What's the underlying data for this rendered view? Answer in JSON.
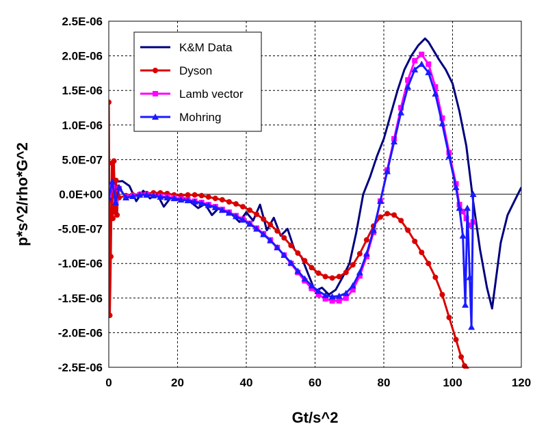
{
  "chart_data": {
    "type": "line",
    "xlabel": "Gt/s^2",
    "ylabel": "p*s^2/rho*G^2",
    "xlim": [
      0,
      120
    ],
    "ylim": [
      -2.5e-06,
      2.5e-06
    ],
    "x_ticks": [
      0,
      20,
      40,
      60,
      80,
      100,
      120
    ],
    "x_tick_labels": [
      "0",
      "20",
      "40",
      "60",
      "80",
      "100",
      "120"
    ],
    "y_ticks": [
      2.5e-06,
      2e-06,
      1.5e-06,
      1e-06,
      5e-07,
      0,
      -5e-07,
      -1e-06,
      -1.5e-06,
      -2e-06,
      -2.5e-06
    ],
    "y_tick_labels": [
      "2.5E-06",
      "2.0E-06",
      "1.5E-06",
      "1.0E-06",
      "5.0E-07",
      "0.0E+00",
      "-5.0E-07",
      "-1.0E-06",
      "-1.5E-06",
      "-2.0E-06",
      "-2.5E-06"
    ],
    "grid": true,
    "legend_position": "top-left",
    "series": [
      {
        "name": "K&M Data",
        "color": "#00007f",
        "marker": "none",
        "x": [
          0,
          2,
          4,
          6,
          8,
          10,
          12,
          14,
          16,
          18,
          20,
          22,
          24,
          26,
          28,
          30,
          32,
          34,
          36,
          38,
          40,
          42,
          44,
          46,
          48,
          50,
          52,
          54,
          56,
          58,
          60,
          62,
          64,
          66,
          68,
          70,
          72,
          74,
          76,
          78,
          80,
          82,
          84,
          86,
          88,
          90,
          92,
          93,
          96,
          98,
          100,
          102,
          104,
          106,
          108,
          110,
          111.5,
          114,
          116,
          118,
          120
        ],
        "y": [
          -1.5e-07,
          1.8e-07,
          1.9e-07,
          1.2e-07,
          -1e-07,
          5e-08,
          -6e-08,
          1e-08,
          -1.8e-07,
          -5e-08,
          -8e-08,
          -6e-08,
          -1.2e-07,
          -2e-07,
          -1.4e-07,
          -3e-07,
          -2e-07,
          -2.4e-07,
          -3e-07,
          -4e-07,
          -2.6e-07,
          -3.8e-07,
          -1.5e-07,
          -5.2e-07,
          -3.4e-07,
          -6e-07,
          -5e-07,
          -8e-07,
          -9e-07,
          -1.15e-06,
          -1.4e-06,
          -1.35e-06,
          -1.45e-06,
          -1.38e-06,
          -1.2e-06,
          -1e-06,
          -5.5e-07,
          0,
          2.5e-07,
          5.5e-07,
          8e-07,
          1.15e-06,
          1.5e-06,
          1.8e-06,
          2e-06,
          2.15e-06,
          2.25e-06,
          2.2e-06,
          1.95e-06,
          1.8e-06,
          1.6e-06,
          1.2e-06,
          7e-07,
          -1e-07,
          -8e-07,
          -1.35e-06,
          -1.65e-06,
          -7e-07,
          -3e-07,
          -1e-07,
          1e-07
        ]
      },
      {
        "name": "Dyson",
        "color": "#d90000",
        "marker": "circle",
        "x": [
          0,
          0.3,
          0.6,
          0.9,
          1.2,
          1.5,
          1.8,
          2.1,
          2.4,
          2.7,
          3,
          5,
          7,
          9,
          11,
          13,
          15,
          17,
          19,
          21,
          23,
          25,
          27,
          29,
          31,
          33,
          35,
          37,
          39,
          41,
          43,
          45,
          47,
          49,
          51,
          53,
          55,
          57,
          59,
          61,
          63,
          65,
          67,
          69,
          71,
          73,
          75,
          77,
          79,
          81,
          83,
          85,
          87,
          89,
          91,
          93,
          95,
          97,
          99,
          101,
          102.5,
          103.5,
          104
        ],
        "y": [
          1.33e-06,
          -1.75e-06,
          -9e-07,
          4.5e-07,
          -3.5e-07,
          4.8e-07,
          -2.5e-07,
          2e-07,
          -3e-07,
          1e-07,
          -5e-08,
          -2e-08,
          -1e-08,
          0,
          1e-08,
          2e-08,
          2e-08,
          1e-08,
          -1e-08,
          -2e-08,
          -1e-08,
          -1e-08,
          -2e-08,
          -4e-08,
          -6e-08,
          -8e-08,
          -1.1e-07,
          -1.4e-07,
          -1.8e-07,
          -2.3e-07,
          -2.9e-07,
          -3.6e-07,
          -4.4e-07,
          -5.3e-07,
          -6.3e-07,
          -7.4e-07,
          -8.5e-07,
          -9.6e-07,
          -1.06e-06,
          -1.14e-06,
          -1.19e-06,
          -1.21e-06,
          -1.19e-06,
          -1.13e-06,
          -1.02e-06,
          -8.6e-07,
          -6.6e-07,
          -4.6e-07,
          -3.3e-07,
          -2.8e-07,
          -3e-07,
          -3.8e-07,
          -5.2e-07,
          -6.8e-07,
          -8.4e-07,
          -1e-06,
          -1.2e-06,
          -1.45e-06,
          -1.78e-06,
          -2.1e-06,
          -2.35e-06,
          -2.48e-06,
          -2.52e-06
        ]
      },
      {
        "name": "Lamb vector",
        "color": "#ff00ff",
        "marker": "square",
        "x": [
          0,
          1,
          2,
          3,
          5,
          7,
          9,
          11,
          13,
          15,
          17,
          19,
          21,
          23,
          25,
          27,
          29,
          31,
          33,
          35,
          37,
          39,
          41,
          43,
          45,
          47,
          49,
          51,
          53,
          55,
          57,
          59,
          61,
          63,
          65,
          67,
          69,
          71,
          73,
          75,
          77,
          79,
          81,
          83,
          85,
          87,
          89,
          91,
          93,
          95,
          97,
          99,
          101,
          102,
          103,
          104,
          105,
          106
        ],
        "y": [
          -1e-08,
          1e-07,
          -1e-07,
          8e-08,
          -4e-08,
          -2e-08,
          -1e-08,
          -1e-08,
          -2e-08,
          -3e-08,
          -4e-08,
          -5e-08,
          -7e-08,
          -8e-08,
          -1e-07,
          -1.2e-07,
          -1.5e-07,
          -1.8e-07,
          -2.2e-07,
          -2.6e-07,
          -3.1e-07,
          -3.6e-07,
          -4.2e-07,
          -4.9e-07,
          -5.7e-07,
          -6.6e-07,
          -7.7e-07,
          -8.8e-07,
          -1e-06,
          -1.13e-06,
          -1.25e-06,
          -1.36e-06,
          -1.45e-06,
          -1.51e-06,
          -1.54e-06,
          -1.54e-06,
          -1.5e-06,
          -1.38e-06,
          -1.18e-06,
          -9e-07,
          -5.5e-07,
          -1e-07,
          3.5e-07,
          8e-07,
          1.25e-06,
          1.65e-06,
          1.93e-06,
          2.02e-06,
          1.88e-06,
          1.55e-06,
          1.1e-06,
          6e-07,
          1.5e-07,
          -1.5e-07,
          -2.5e-07,
          -3.5e-07,
          -4.5e-07,
          -4e-07
        ]
      },
      {
        "name": "Mohring",
        "color": "#1a1aff",
        "marker": "triangle",
        "x": [
          0,
          1,
          2,
          3,
          5,
          7,
          9,
          11,
          13,
          15,
          17,
          19,
          21,
          23,
          25,
          27,
          29,
          31,
          33,
          35,
          37,
          39,
          41,
          43,
          45,
          47,
          49,
          51,
          53,
          55,
          57,
          59,
          61,
          63,
          65,
          67,
          69,
          71,
          73,
          75,
          77,
          79,
          81,
          83,
          85,
          87,
          89,
          91,
          93,
          95,
          97,
          99,
          101,
          102,
          103,
          103.7,
          104.3,
          105,
          105.5,
          106
        ],
        "y": [
          -5e-08,
          1.8e-07,
          -1.2e-07,
          1e-07,
          -5e-08,
          -3e-08,
          -1e-08,
          -1e-08,
          -2e-08,
          -4e-08,
          -5e-08,
          -6e-08,
          -8e-08,
          -9e-08,
          -1.1e-07,
          -1.3e-07,
          -1.6e-07,
          -1.9e-07,
          -2.3e-07,
          -2.7e-07,
          -3.2e-07,
          -3.7e-07,
          -4.3e-07,
          -5e-07,
          -5.8e-07,
          -6.7e-07,
          -7.7e-07,
          -8.8e-07,
          -9.9e-07,
          -1.11e-06,
          -1.22e-06,
          -1.32e-06,
          -1.4e-06,
          -1.46e-06,
          -1.48e-06,
          -1.47e-06,
          -1.43e-06,
          -1.32e-06,
          -1.13e-06,
          -8.6e-07,
          -5.2e-07,
          -1e-07,
          3.3e-07,
          7.6e-07,
          1.18e-06,
          1.55e-06,
          1.8e-06,
          1.88e-06,
          1.76e-06,
          1.45e-06,
          1.02e-06,
          5.5e-07,
          1e-07,
          -2e-07,
          -6e-07,
          -1.6e-06,
          -2e-07,
          -1.2e-06,
          -1.92e-06,
          0
        ]
      }
    ]
  }
}
